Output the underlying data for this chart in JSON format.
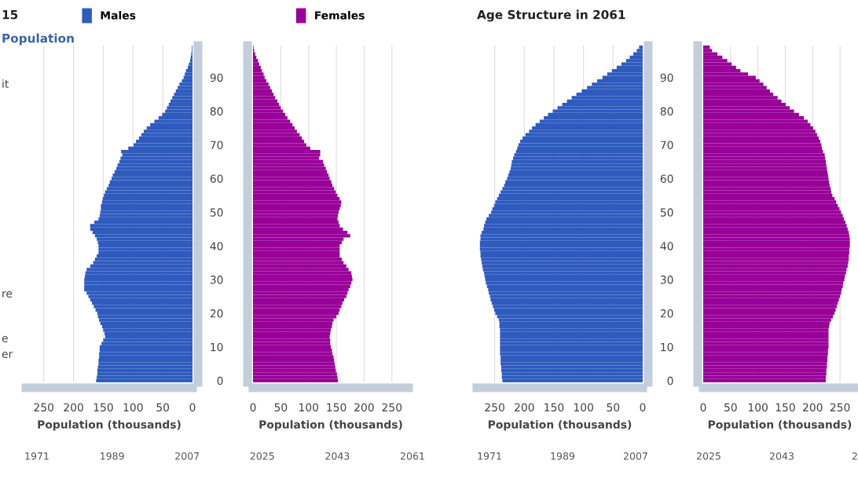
{
  "chart_data": [
    {
      "type": "bar",
      "orientation": "horizontal",
      "title": "15",
      "subtitle": "Population",
      "xlabel": "Population (thousands)",
      "legend": "top",
      "grid": "x",
      "tick_labels": "x",
      "categories": [
        null,
        null,
        null,
        null,
        null,
        null,
        null,
        null,
        null,
        "90",
        null,
        null,
        null,
        null,
        null,
        null,
        null,
        null,
        null,
        "80",
        null,
        null,
        null,
        null,
        null,
        null,
        null,
        null,
        null,
        "70",
        null,
        null,
        null,
        null,
        null,
        null,
        null,
        null,
        null,
        "60",
        null,
        null,
        null,
        null,
        null,
        null,
        null,
        null,
        null,
        "50",
        null,
        null,
        null,
        null,
        null,
        null,
        null,
        null,
        null,
        "40",
        null,
        null,
        null,
        null,
        null,
        null,
        null,
        null,
        null,
        "30",
        null,
        null,
        null,
        null,
        null,
        null,
        null,
        null,
        null,
        "20",
        null,
        null,
        null,
        null,
        null,
        null,
        null,
        null,
        null,
        "10",
        null,
        null,
        null,
        null,
        null,
        null,
        null,
        null,
        null,
        "0"
      ],
      "xlim": [
        280,
        0
      ],
      "xticks": [
        250,
        200,
        150,
        100,
        50,
        0
      ],
      "annotations": [
        "it",
        "re",
        "e",
        "er"
      ],
      "series": [
        {
          "name": "Males",
          "color": "#2f5bbf",
          "values": [
            1,
            1,
            2,
            3,
            4,
            6,
            8,
            11,
            13,
            15,
            18,
            22,
            25,
            28,
            31,
            34,
            37,
            40,
            43,
            46,
            51,
            57,
            64,
            71,
            77,
            82,
            86,
            90,
            95,
            99,
            108,
            120,
            118,
            121,
            123,
            126,
            128,
            131,
            134,
            136,
            139,
            141,
            144,
            147,
            149,
            151,
            152,
            154,
            154,
            155,
            156,
            158,
            165,
            172,
            172,
            168,
            164,
            161,
            159,
            158,
            158,
            158,
            161,
            164,
            167,
            172,
            178,
            180,
            181,
            182,
            182,
            182,
            182,
            178,
            175,
            172,
            169,
            166,
            163,
            160,
            159,
            157,
            155,
            152,
            150,
            148,
            147,
            150,
            153,
            156,
            156,
            157,
            157,
            158,
            158,
            159,
            160,
            160,
            161,
            162
          ]
        }
      ]
    },
    {
      "type": "bar",
      "orientation": "horizontal",
      "xlabel": "Population (thousands)",
      "legend": "top",
      "grid": "x",
      "categories": [
        null,
        null,
        null,
        null,
        null,
        null,
        null,
        null,
        null,
        "90",
        null,
        null,
        null,
        null,
        null,
        null,
        null,
        null,
        null,
        "80",
        null,
        null,
        null,
        null,
        null,
        null,
        null,
        null,
        null,
        "70",
        null,
        null,
        null,
        null,
        null,
        null,
        null,
        null,
        null,
        "60",
        null,
        null,
        null,
        null,
        null,
        null,
        null,
        null,
        null,
        "50",
        null,
        null,
        null,
        null,
        null,
        null,
        null,
        null,
        null,
        "40",
        null,
        null,
        null,
        null,
        null,
        null,
        null,
        null,
        null,
        "30",
        null,
        null,
        null,
        null,
        null,
        null,
        null,
        null,
        null,
        "20",
        null,
        null,
        null,
        null,
        null,
        null,
        null,
        null,
        null,
        "10",
        null,
        null,
        null,
        null,
        null,
        null,
        null,
        null,
        null,
        "0"
      ],
      "xlim": [
        0,
        280
      ],
      "xticks": [
        0,
        50,
        100,
        150,
        200,
        250
      ],
      "annotations": [
        "1971",
        "1989",
        "2007",
        "2025",
        "2043",
        "2061"
      ],
      "series": [
        {
          "name": "Females",
          "color": "#990099",
          "values": [
            1,
            2,
            4,
            6,
            9,
            11,
            14,
            16,
            19,
            21,
            24,
            28,
            31,
            34,
            37,
            40,
            44,
            47,
            50,
            54,
            58,
            62,
            67,
            71,
            75,
            79,
            84,
            88,
            92,
            96,
            103,
            121,
            121,
            119,
            126,
            128,
            131,
            133,
            136,
            138,
            141,
            143,
            146,
            149,
            152,
            156,
            159,
            158,
            156,
            154,
            153,
            152,
            154,
            156,
            162,
            170,
            175,
            163,
            160,
            156,
            156,
            156,
            156,
            160,
            163,
            168,
            172,
            177,
            178,
            179,
            177,
            175,
            172,
            170,
            168,
            164,
            161,
            159,
            156,
            154,
            150,
            145,
            143,
            142,
            140,
            139,
            138,
            139,
            139,
            140,
            142,
            143,
            145,
            146,
            147,
            148,
            149,
            151,
            152,
            153
          ]
        }
      ]
    },
    {
      "type": "bar",
      "orientation": "horizontal",
      "title": "Age Structure in 2061",
      "xlabel": "Population (thousands)",
      "grid": "x",
      "tick_labels": "x",
      "categories": [
        null,
        null,
        null,
        null,
        null,
        null,
        null,
        null,
        null,
        "90",
        null,
        null,
        null,
        null,
        null,
        null,
        null,
        null,
        null,
        "80",
        null,
        null,
        null,
        null,
        null,
        null,
        null,
        null,
        null,
        "70",
        null,
        null,
        null,
        null,
        null,
        null,
        null,
        null,
        null,
        "60",
        null,
        null,
        null,
        null,
        null,
        null,
        null,
        null,
        null,
        "50",
        null,
        null,
        null,
        null,
        null,
        null,
        null,
        null,
        null,
        "40",
        null,
        null,
        null,
        null,
        null,
        null,
        null,
        null,
        null,
        "30",
        null,
        null,
        null,
        null,
        null,
        null,
        null,
        null,
        null,
        "20",
        null,
        null,
        null,
        null,
        null,
        null,
        null,
        null,
        null,
        "10",
        null,
        null,
        null,
        null,
        null,
        null,
        null,
        null,
        null,
        "0"
      ],
      "xlim": [
        280,
        0
      ],
      "xticks": [
        250,
        200,
        150,
        100,
        50,
        0
      ],
      "series": [
        {
          "color": "#2f5bbf",
          "values": [
            6,
            10,
            16,
            22,
            28,
            36,
            44,
            52,
            60,
            68,
            77,
            86,
            94,
            103,
            112,
            120,
            128,
            136,
            144,
            152,
            160,
            167,
            174,
            181,
            187,
            192,
            198,
            203,
            207,
            210,
            212,
            214,
            217,
            219,
            221,
            222,
            223,
            225,
            227,
            229,
            232,
            234,
            237,
            240,
            243,
            246,
            249,
            251,
            254,
            256,
            260,
            264,
            266,
            268,
            269,
            272,
            274,
            274,
            275,
            275,
            275,
            274,
            274,
            273,
            272,
            271,
            270,
            268,
            267,
            266,
            265,
            263,
            261,
            260,
            258,
            257,
            255,
            253,
            251,
            249,
            246,
            243,
            242,
            242,
            241,
            241,
            241,
            241,
            241,
            241,
            241,
            241,
            240,
            240,
            240,
            239,
            239,
            238,
            238,
            237
          ]
        }
      ]
    },
    {
      "type": "bar",
      "orientation": "horizontal",
      "xlabel": "Population (thousands)",
      "grid": "x",
      "categories": [
        null,
        null,
        null,
        null,
        null,
        null,
        null,
        null,
        null,
        "90",
        null,
        null,
        null,
        null,
        null,
        null,
        null,
        null,
        null,
        "80",
        null,
        null,
        null,
        null,
        null,
        null,
        null,
        null,
        null,
        "70",
        null,
        null,
        null,
        null,
        null,
        null,
        null,
        null,
        null,
        "60",
        null,
        null,
        null,
        null,
        null,
        null,
        null,
        null,
        null,
        "50",
        null,
        null,
        null,
        null,
        null,
        null,
        null,
        null,
        null,
        "40",
        null,
        null,
        null,
        null,
        null,
        null,
        null,
        null,
        null,
        "30",
        null,
        null,
        null,
        null,
        null,
        null,
        null,
        null,
        null,
        "20",
        null,
        null,
        null,
        null,
        null,
        null,
        null,
        null,
        null,
        "10",
        null,
        null,
        null,
        null,
        null,
        null,
        null,
        null,
        null,
        "0"
      ],
      "xlim": [
        0,
        280
      ],
      "xticks": [
        0,
        50,
        100,
        150,
        200,
        250
      ],
      "annotations": [
        "1971",
        "1989",
        "2007",
        "2025",
        "2043",
        "2"
      ],
      "series": [
        {
          "color": "#990099",
          "values": [
            12,
            16,
            26,
            35,
            44,
            52,
            60,
            68,
            82,
            96,
            103,
            110,
            116,
            122,
            128,
            136,
            143,
            151,
            158,
            166,
            175,
            184,
            191,
            196,
            201,
            205,
            208,
            211,
            214,
            216,
            217,
            219,
            222,
            223,
            224,
            225,
            226,
            227,
            228,
            229,
            230,
            231,
            233,
            234,
            236,
            240,
            243,
            246,
            249,
            252,
            255,
            257,
            260,
            262,
            264,
            266,
            267,
            268,
            268,
            268,
            267,
            267,
            266,
            266,
            265,
            264,
            262,
            261,
            259,
            258,
            256,
            255,
            253,
            252,
            250,
            248,
            246,
            244,
            242,
            240,
            237,
            234,
            231,
            230,
            229,
            229,
            229,
            229,
            229,
            229,
            228,
            228,
            227,
            227,
            226,
            226,
            225,
            225,
            224,
            224
          ]
        }
      ]
    }
  ]
}
